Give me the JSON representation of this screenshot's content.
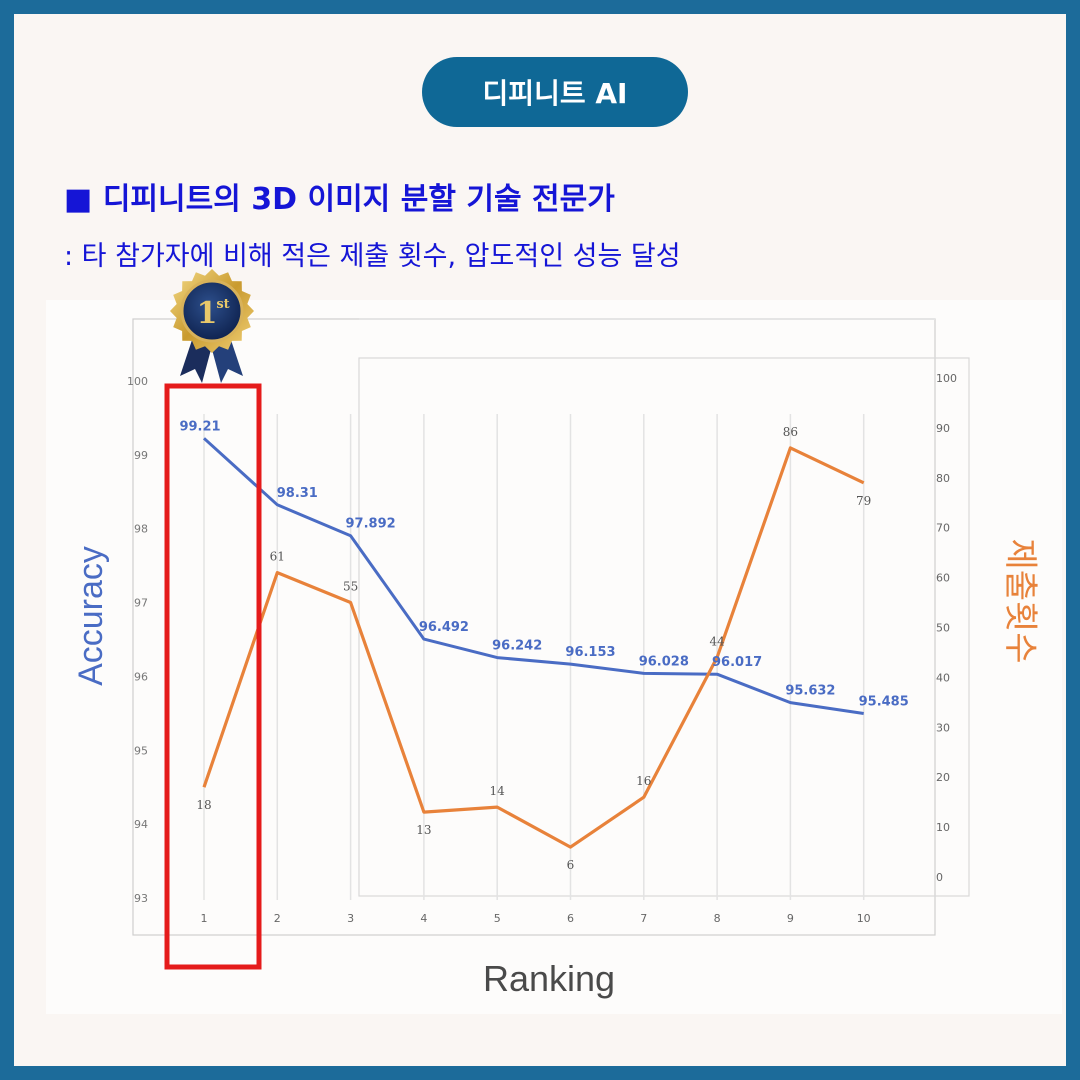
{
  "badge": {
    "label": "디피니트 AI"
  },
  "heading": {
    "marker": "■",
    "title": "디피니트의 3D 이미지 분할 기술 전문가"
  },
  "subheading": {
    "text": ": 타 참가자에 비해 적은 제출 횟수, 압도적인 성능 달성"
  },
  "medal": {
    "label": "1",
    "suffix": "st"
  },
  "colors": {
    "accuracy": "#4a6cc4",
    "submissions": "#e8823a",
    "highlight": "#e51b1b",
    "title_blue": "#1515d6",
    "frame": "#1c6b9a"
  },
  "chart_data": {
    "type": "line",
    "categories": [
      "1",
      "2",
      "3",
      "4",
      "5",
      "6",
      "7",
      "8",
      "9",
      "10"
    ],
    "xlabel": "Ranking",
    "ylabel": "Accuracy",
    "y2label": "제출횟수",
    "ylim": [
      93,
      100
    ],
    "y2lim": [
      0,
      100
    ],
    "yticks": [
      "93",
      "94",
      "95",
      "96",
      "97",
      "98",
      "99",
      "100"
    ],
    "y2ticks": [
      "0",
      "10",
      "20",
      "30",
      "40",
      "50",
      "60",
      "70",
      "80",
      "90",
      "100"
    ],
    "highlight_category": "1",
    "series": [
      {
        "axis": "left",
        "values": [
          99.21,
          98.31,
          97.892,
          96.492,
          96.242,
          96.153,
          96.028,
          96.017,
          95.632,
          95.485
        ],
        "labels": [
          "99.21",
          "98.31",
          "97.892",
          "96.492",
          "96.242",
          "96.153",
          "96.028",
          "96.017",
          "95.632",
          "95.485"
        ]
      },
      {
        "axis": "right",
        "values": [
          18,
          61,
          55,
          13,
          14,
          6,
          16,
          44,
          86,
          79
        ],
        "labels": [
          "18",
          "61",
          "55",
          "13",
          "14",
          "6",
          "16",
          "44",
          "86",
          "79"
        ]
      }
    ]
  }
}
